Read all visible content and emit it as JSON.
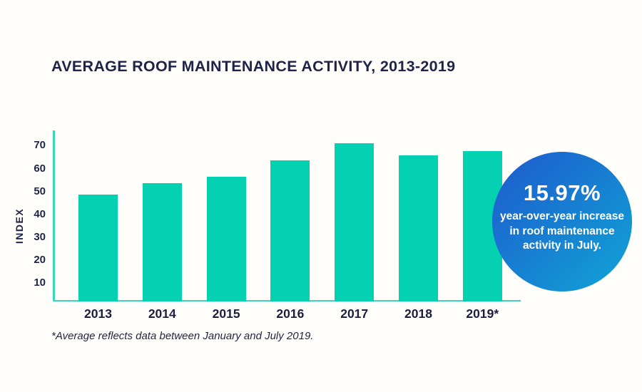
{
  "title": "AVERAGE ROOF MAINTENANCE ACTIVITY, 2013-2019",
  "footnote": "*Average reflects data between January and July 2019.",
  "badge": {
    "value": "15.97%",
    "lines": [
      "year-over-year increase",
      "in roof maintenance",
      "activity in July."
    ],
    "gradient_from": "#1e59cd",
    "gradient_to": "#10a5d6"
  },
  "colors": {
    "bar": "#04d1b2",
    "axis": "#3ad6bd",
    "text": "#1e2347",
    "background": "#fffefb"
  },
  "chart_data": {
    "type": "bar",
    "categories": [
      "2013",
      "2014",
      "2015",
      "2016",
      "2017",
      "2018",
      "2019*"
    ],
    "values": [
      48.5,
      53.5,
      56.5,
      64,
      71.5,
      66,
      68
    ],
    "title": "AVERAGE ROOF MAINTENANCE ACTIVITY, 2013-2019",
    "xlabel": "",
    "ylabel": "INDEX",
    "ylim": [
      0,
      77
    ],
    "yticks": [
      10,
      20,
      30,
      40,
      50,
      60,
      70
    ],
    "grid": false,
    "legend": null,
    "footnote": "*Average reflects data between January and July 2019."
  }
}
